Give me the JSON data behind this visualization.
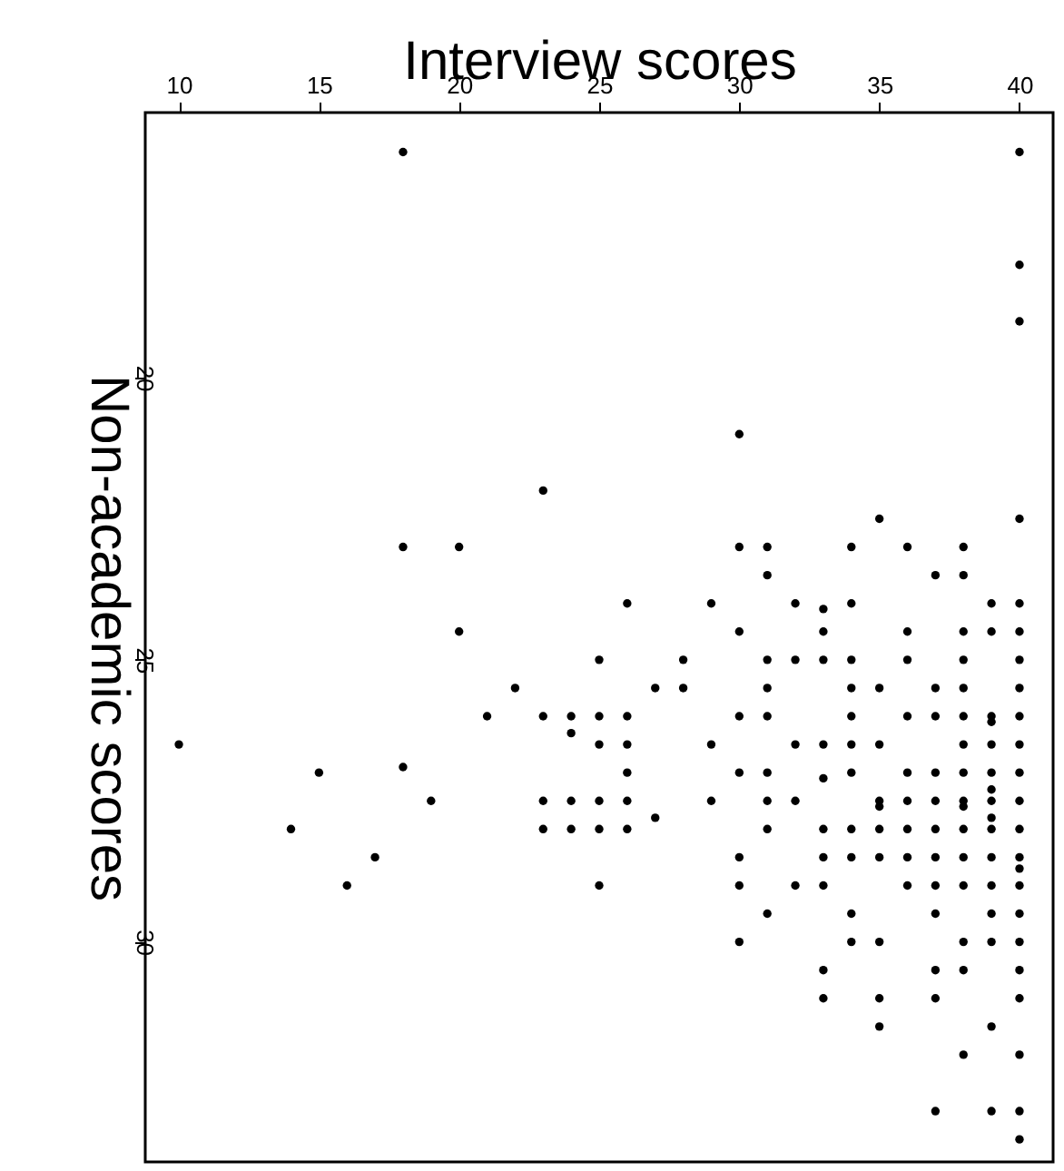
{
  "chart_data": {
    "type": "scatter",
    "xlabel": "Interview scores",
    "ylabel": "Non-academic scores",
    "xlim": [
      8.8,
      41.2
    ],
    "ylim": [
      33.9,
      15.3
    ],
    "xticks": [
      10,
      15,
      20,
      25,
      30,
      35,
      40
    ],
    "yticks": [
      20,
      25,
      30
    ],
    "grid": false,
    "marker": "circle",
    "series": [
      {
        "color": "#000000",
        "x": [
          18,
          40,
          40,
          40,
          30,
          23,
          35,
          40,
          18,
          20,
          30,
          31,
          34,
          36,
          38,
          31,
          37,
          38,
          26,
          29,
          32,
          33,
          34,
          39,
          40,
          20,
          30,
          33,
          36,
          38,
          39,
          40,
          22,
          21,
          24,
          10,
          15,
          18,
          19,
          14,
          17,
          16,
          25,
          28,
          31,
          32,
          33,
          34,
          36,
          38,
          40,
          27,
          28,
          31,
          34,
          35,
          37,
          38,
          40,
          23,
          24,
          25,
          26,
          30,
          31,
          34,
          36,
          37,
          38,
          39,
          39,
          40,
          25,
          26,
          29,
          32,
          33,
          34,
          35,
          38,
          39,
          40,
          26,
          30,
          31,
          34,
          36,
          37,
          38,
          39,
          40,
          33,
          39,
          23,
          24,
          25,
          26,
          29,
          31,
          32,
          35,
          35,
          36,
          37,
          38,
          38,
          39,
          40,
          39,
          27,
          23,
          24,
          25,
          26,
          31,
          33,
          34,
          35,
          36,
          37,
          38,
          39,
          40,
          30,
          33,
          34,
          35,
          36,
          37,
          38,
          39,
          40,
          40,
          25,
          30,
          32,
          33,
          36,
          37,
          38,
          39,
          40,
          31,
          34,
          37,
          39,
          40,
          30,
          34,
          35,
          38,
          39,
          40,
          33,
          37,
          38,
          40,
          33,
          35,
          37,
          40,
          35,
          39,
          38,
          40,
          37,
          39,
          40,
          40
        ],
        "values": [
          16,
          16,
          18,
          19,
          21,
          22,
          22.5,
          22.5,
          23,
          23,
          23,
          23,
          23,
          23,
          23,
          23.5,
          23.5,
          23.5,
          24,
          24,
          24,
          24.1,
          24,
          24,
          24,
          24.5,
          24.5,
          24.5,
          24.5,
          24.5,
          24.5,
          24.5,
          25.5,
          26,
          26.3,
          26.5,
          27,
          26.9,
          27.5,
          28,
          28.5,
          29,
          25,
          25,
          25,
          25,
          25,
          25,
          25,
          25,
          25,
          25.5,
          25.5,
          25.5,
          25.5,
          25.5,
          25.5,
          25.5,
          25.5,
          26,
          26,
          26,
          26,
          26,
          26,
          26,
          26,
          26,
          26,
          26,
          26.1,
          26,
          26.5,
          26.5,
          26.5,
          26.5,
          26.5,
          26.5,
          26.5,
          26.5,
          26.5,
          26.5,
          27,
          27,
          27,
          27,
          27,
          27,
          27,
          27,
          27,
          27.1,
          27.3,
          27.5,
          27.5,
          27.5,
          27.5,
          27.5,
          27.5,
          27.5,
          27.5,
          27.6,
          27.5,
          27.5,
          27.5,
          27.6,
          27.5,
          27.5,
          27.8,
          27.8,
          28,
          28,
          28,
          28,
          28,
          28,
          28,
          28,
          28,
          28,
          28,
          28,
          28,
          28.5,
          28.5,
          28.5,
          28.5,
          28.5,
          28.5,
          28.5,
          28.5,
          28.5,
          28.7,
          29,
          29,
          29,
          29,
          29,
          29,
          29,
          29,
          29,
          29.5,
          29.5,
          29.5,
          29.5,
          29.5,
          30,
          30,
          30,
          30,
          30,
          30,
          30.5,
          30.5,
          30.5,
          30.5,
          31,
          31,
          31,
          31,
          31.5,
          31.5,
          32,
          32,
          33,
          33,
          33,
          33.5
        ]
      }
    ]
  }
}
